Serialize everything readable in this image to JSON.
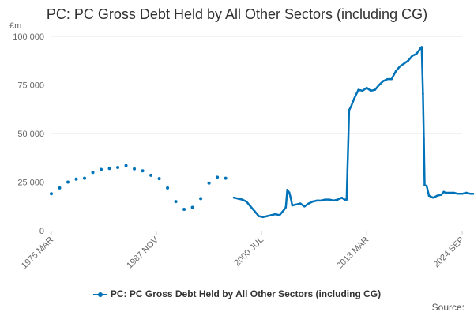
{
  "title": "PC: PC Gross Debt Held by All Other Sectors (including CG)",
  "credits": "Source:",
  "colors": {
    "series": "#0072b8"
  },
  "chart_data": {
    "type": "line",
    "title": "PC: PC Gross Debt Held by All Other Sectors (including CG)",
    "ylabel": "£m",
    "xlabel": "",
    "ylim": [
      0,
      100000
    ],
    "yticks": [
      {
        "value": 0,
        "label": "0"
      },
      {
        "value": 25000,
        "label": "25 000"
      },
      {
        "value": 50000,
        "label": "50 000"
      },
      {
        "value": 75000,
        "label": "75 000"
      },
      {
        "value": 100000,
        "label": "100 000"
      }
    ],
    "xticks": [
      {
        "x": 1975.17,
        "label": "1975 MAR"
      },
      {
        "x": 1987.83,
        "label": "1987 NOV"
      },
      {
        "x": 2000.5,
        "label": "2000 JUL"
      },
      {
        "x": 2013.17,
        "label": "2013 MAR"
      },
      {
        "x": 2024.67,
        "label": "2024 SEP"
      }
    ],
    "grid": true,
    "legend": "bottom-center",
    "series": [
      {
        "name": "PC: PC Gross Debt Held by All Other Sectors (including CG)",
        "annual_points": [
          [
            1975.17,
            19000
          ],
          [
            1976.17,
            22000
          ],
          [
            1977.17,
            25000
          ],
          [
            1978.17,
            26500
          ],
          [
            1979.17,
            27000
          ],
          [
            1980.17,
            30000
          ],
          [
            1981.17,
            31500
          ],
          [
            1982.17,
            32000
          ],
          [
            1983.17,
            32500
          ],
          [
            1984.17,
            33500
          ],
          [
            1985.17,
            31800
          ],
          [
            1986.17,
            30800
          ],
          [
            1987.17,
            28500
          ],
          [
            1988.17,
            26800
          ],
          [
            1989.17,
            22000
          ],
          [
            1990.17,
            15000
          ],
          [
            1991.17,
            11000
          ],
          [
            1992.17,
            12000
          ],
          [
            1993.17,
            16500
          ],
          [
            1994.17,
            24500
          ],
          [
            1995.17,
            27500
          ],
          [
            1996.17,
            27000
          ]
        ],
        "points": [
          [
            1997.17,
            17000
          ],
          [
            1997.67,
            16500
          ],
          [
            1998.17,
            16000
          ],
          [
            1998.67,
            15000
          ],
          [
            1999.17,
            12500
          ],
          [
            1999.67,
            10000
          ],
          [
            2000.17,
            7500
          ],
          [
            2000.67,
            7000
          ],
          [
            2001.17,
            7500
          ],
          [
            2001.67,
            8000
          ],
          [
            2002.17,
            8500
          ],
          [
            2002.67,
            8000
          ],
          [
            2003.17,
            10500
          ],
          [
            2003.42,
            12000
          ],
          [
            2003.6,
            21000
          ],
          [
            2003.85,
            19500
          ],
          [
            2004.0,
            17000
          ],
          [
            2004.2,
            13000
          ],
          [
            2004.67,
            13500
          ],
          [
            2005.17,
            14000
          ],
          [
            2005.5,
            13000
          ],
          [
            2005.67,
            12500
          ],
          [
            2006.17,
            14000
          ],
          [
            2006.67,
            15000
          ],
          [
            2007.17,
            15500
          ],
          [
            2007.67,
            15500
          ],
          [
            2008.17,
            16000
          ],
          [
            2008.67,
            16000
          ],
          [
            2009.17,
            15500
          ],
          [
            2009.67,
            16000
          ],
          [
            2010.17,
            17000
          ],
          [
            2010.5,
            16000
          ],
          [
            2010.75,
            16000
          ],
          [
            2010.85,
            31000
          ],
          [
            2010.95,
            46000
          ],
          [
            2011.05,
            62000
          ],
          [
            2011.3,
            64000
          ],
          [
            2011.67,
            68000
          ],
          [
            2012.17,
            72500
          ],
          [
            2012.67,
            72000
          ],
          [
            2013.17,
            73500
          ],
          [
            2013.67,
            72000
          ],
          [
            2014.17,
            72500
          ],
          [
            2014.67,
            75000
          ],
          [
            2015.17,
            77000
          ],
          [
            2015.67,
            78000
          ],
          [
            2016.17,
            78000
          ],
          [
            2016.67,
            82000
          ],
          [
            2017.17,
            84500
          ],
          [
            2017.67,
            86000
          ],
          [
            2018.17,
            87500
          ],
          [
            2018.67,
            90000
          ],
          [
            2019.17,
            91000
          ],
          [
            2019.67,
            94000
          ],
          [
            2019.8,
            94500
          ],
          [
            2019.95,
            70500
          ],
          [
            2020.05,
            47000
          ],
          [
            2020.15,
            23500
          ],
          [
            2020.4,
            23000
          ],
          [
            2020.67,
            18000
          ],
          [
            2021.17,
            17000
          ],
          [
            2021.67,
            18000
          ],
          [
            2022.17,
            18500
          ],
          [
            2022.45,
            20000
          ],
          [
            2022.67,
            19500
          ],
          [
            2023.17,
            19500
          ],
          [
            2023.67,
            19500
          ],
          [
            2024.17,
            19000
          ],
          [
            2024.67,
            19000
          ],
          [
            2025.17,
            19500
          ],
          [
            2025.67,
            19000
          ],
          [
            2026.17,
            19000
          ],
          [
            2026.67,
            19000
          ]
        ]
      }
    ]
  }
}
